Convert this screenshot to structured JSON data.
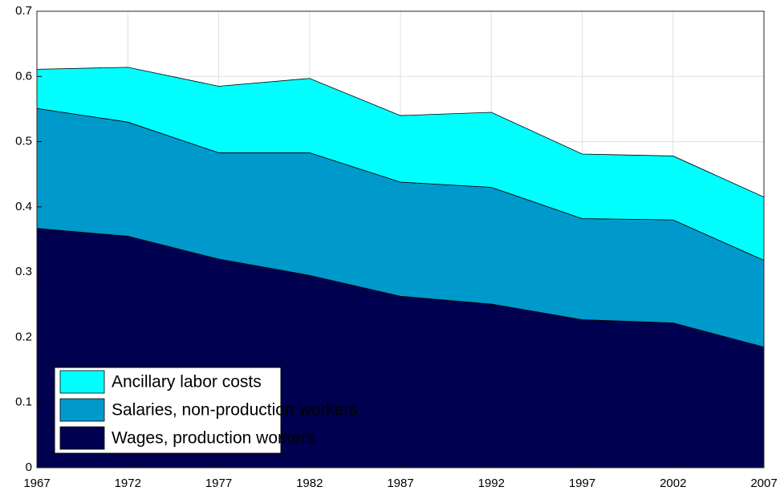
{
  "chart_data": {
    "type": "stacked-area",
    "x": [
      1967,
      1972,
      1977,
      1982,
      1987,
      1992,
      1997,
      2002,
      2007
    ],
    "series": [
      {
        "name": "Wages, production workers",
        "color": "#000050",
        "values": [
          0.367,
          0.355,
          0.32,
          0.295,
          0.263,
          0.251,
          0.227,
          0.222,
          0.185
        ]
      },
      {
        "name": "Salaries, non-production workers",
        "color": "#0099cc",
        "values": [
          0.184,
          0.175,
          0.163,
          0.188,
          0.175,
          0.179,
          0.155,
          0.158,
          0.133
        ]
      },
      {
        "name": "Ancillary labor costs",
        "color": "#00ffff",
        "values": [
          0.06,
          0.084,
          0.102,
          0.114,
          0.102,
          0.115,
          0.099,
          0.098,
          0.097
        ]
      }
    ],
    "xlim": [
      1967,
      2007
    ],
    "xticks": [
      1967,
      1972,
      1977,
      1982,
      1987,
      1992,
      1997,
      2002,
      2007
    ],
    "ylim": [
      0,
      0.7
    ],
    "yticks": [
      0,
      0.1,
      0.2,
      0.3,
      0.4,
      0.5,
      0.6,
      0.7
    ],
    "grid": true,
    "legend": "lower left"
  }
}
